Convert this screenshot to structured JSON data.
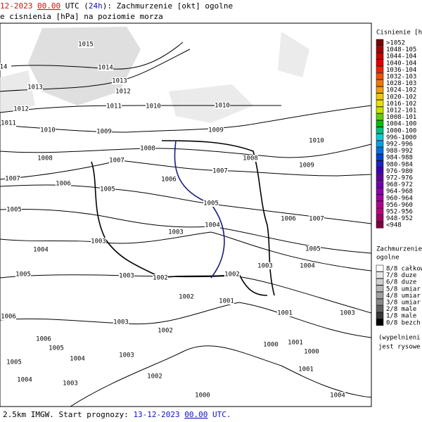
{
  "header": {
    "line1": [
      {
        "text": "12-2023",
        "color": "#d01010"
      },
      {
        "text": " ",
        "color": "#000"
      },
      {
        "text": "00.00",
        "color": "#d01010",
        "underline": true
      },
      {
        "text": " UTC (",
        "color": "#000"
      },
      {
        "text": "24h",
        "color": "#1010c0"
      },
      {
        "text": "): Zachmurzenie [okt] ogolne",
        "color": "#000"
      }
    ],
    "line2": "e cisnienia [hPa] na poziomie morza"
  },
  "isobar_labels": [
    "1015",
    "1014",
    "14",
    "1013",
    "1013",
    "1012",
    "1012",
    "1011",
    "1010",
    "1010",
    "1011",
    "1010",
    "1009",
    "1009",
    "1008",
    "1008",
    "1007",
    "1008",
    "1010",
    "1009",
    "1007",
    "1007",
    "1006",
    "1006",
    "1005",
    "1005",
    "1005",
    "1004",
    "1003",
    "1006",
    "1007",
    "1003",
    "1004",
    "1005",
    "1003",
    "1004",
    "1005",
    "1003",
    "1002",
    "1002",
    "1002",
    "1001",
    "1002",
    "1001",
    "1003",
    "1006",
    "1003",
    "1000",
    "1001",
    "1000",
    "1003",
    "1002",
    "1000",
    "1004",
    "1006",
    "1005",
    "1004",
    "1005",
    "1004",
    "1003",
    "1001"
  ],
  "pressure_legend": {
    "title": "Cisnienie [hP",
    "classes": [
      ">1052",
      "1048-105",
      "1044-104",
      "1040-104",
      "1036-104",
      "1032-103",
      "1028-103",
      "1024-102",
      "1020-102",
      "1016-102",
      "1012-101",
      "1008-101",
      "1004-100",
      "1000-100",
      "996-1000",
      "992-996",
      "988-992",
      "984-988",
      "980-984",
      "976-980",
      "972-976",
      "968-972",
      "964-968",
      "960-964",
      "956-960",
      "952-956",
      "948-952",
      "<948"
    ],
    "colors": [
      "#7a0000",
      "#a00000",
      "#c80000",
      "#e00000",
      "#f02000",
      "#f05000",
      "#f07800",
      "#f0a000",
      "#f0c800",
      "#e8e000",
      "#c8e000",
      "#60d000",
      "#00c000",
      "#00c080",
      "#00d0d0",
      "#00a0e0",
      "#0070e0",
      "#0040d0",
      "#2020c0",
      "#4000b0",
      "#6000a0",
      "#7000b0",
      "#9000b0",
      "#a000a0",
      "#b00090",
      "#c00080",
      "#a00060",
      "#800040"
    ]
  },
  "cloud_legend": {
    "title": [
      "Zachmurzenie",
      "ogolne"
    ],
    "classes": [
      "8/8 całkow",
      "7/8 duze",
      "6/8 duze",
      "5/8 umiar",
      "4/8 umiar",
      "3/8 umiar",
      "2/8 male",
      "1/8 male",
      "0/8 bezch"
    ],
    "colors": [
      "#ffffff",
      "#e8e8e8",
      "#d0d0d0",
      "#b8b8b8",
      "#a0a0a0",
      "#888888",
      "#606060",
      "#383838",
      "#000000"
    ],
    "note": [
      "(wypelnieni",
      "jest rysowe"
    ]
  },
  "footer": [
    {
      "text": "2.5km IMGW. Start prognozy: ",
      "color": "#000"
    },
    {
      "text": "13-12-2023",
      "color": "#1010c0"
    },
    {
      "text": " ",
      "color": "#000"
    },
    {
      "text": "00.00",
      "color": "#1010c0",
      "underline": true
    },
    {
      "text": " UTC.",
      "color": "#1010c0"
    }
  ]
}
